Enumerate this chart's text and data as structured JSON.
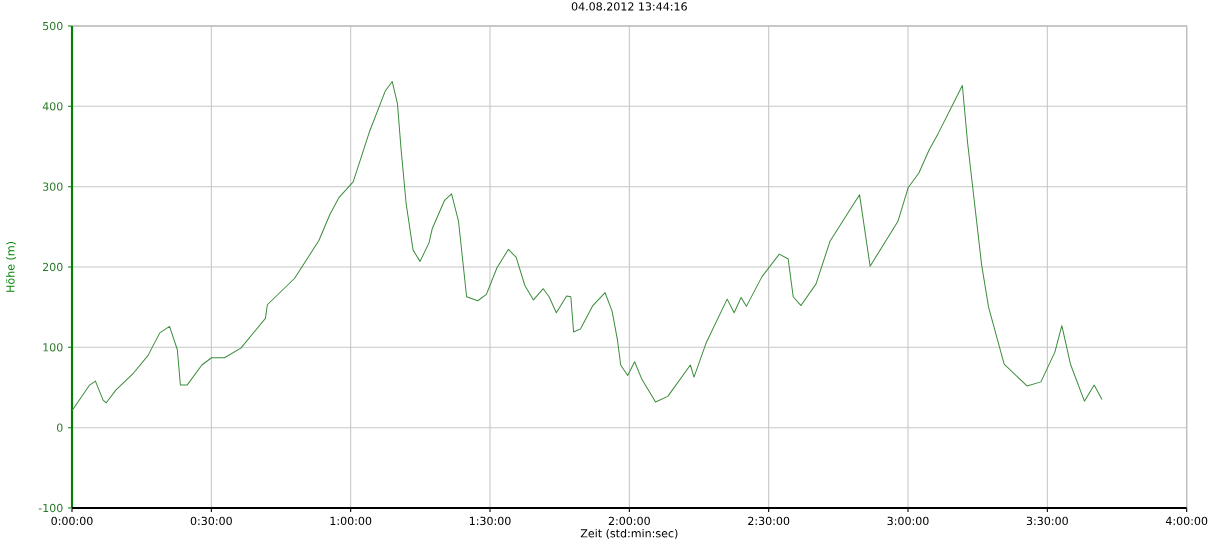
{
  "chart_data": {
    "type": "line",
    "title": "04.08.2012 13:44:16",
    "xlabel": "Zeit (std:min:sec)",
    "ylabel": "Höhe (m)",
    "xlim": [
      0,
      4
    ],
    "ylim": [
      -100,
      500
    ],
    "xticks": [
      {
        "value": 0,
        "label": "0:00:00"
      },
      {
        "value": 0.5,
        "label": "0:30:00"
      },
      {
        "value": 1,
        "label": "1:00:00"
      },
      {
        "value": 1.5,
        "label": "1:30:00"
      },
      {
        "value": 2,
        "label": "2:00:00"
      },
      {
        "value": 2.5,
        "label": "2:30:00"
      },
      {
        "value": 3,
        "label": "3:00:00"
      },
      {
        "value": 3.5,
        "label": "3:30:00"
      },
      {
        "value": 4,
        "label": "4:00:00"
      }
    ],
    "yticks": [
      -100,
      0,
      100,
      200,
      300,
      400,
      500
    ],
    "grid": true,
    "marker": "none",
    "line_style": "solid",
    "series": [
      {
        "color": "#3c8c3c",
        "x": [
          0,
          0.063,
          0.084,
          0.112,
          0.123,
          0.158,
          0.221,
          0.273,
          0.315,
          0.35,
          0.378,
          0.389,
          0.413,
          0.466,
          0.501,
          0.547,
          0.606,
          0.694,
          0.701,
          0.799,
          0.886,
          0.925,
          0.957,
          1.009,
          1.067,
          1.124,
          1.149,
          1.168,
          1.18,
          1.199,
          1.224,
          1.249,
          1.281,
          1.293,
          1.337,
          1.362,
          1.387,
          1.416,
          1.456,
          1.487,
          1.525,
          1.566,
          1.594,
          1.625,
          1.656,
          1.691,
          1.712,
          1.738,
          1.775,
          1.79,
          1.8,
          1.825,
          1.869,
          1.913,
          1.938,
          1.957,
          1.969,
          1.994,
          2.019,
          2.044,
          2.094,
          2.138,
          2.219,
          2.232,
          2.275,
          2.351,
          2.376,
          2.401,
          2.42,
          2.476,
          2.538,
          2.57,
          2.588,
          2.616,
          2.67,
          2.72,
          2.826,
          2.864,
          2.964,
          3.001,
          3.039,
          3.076,
          3.108,
          3.195,
          3.214,
          3.264,
          3.289,
          3.345,
          3.427,
          3.477,
          3.527,
          3.552,
          3.583,
          3.633,
          3.668,
          3.696
        ],
        "values": [
          21,
          53,
          58,
          34,
          31,
          47,
          68,
          90,
          118,
          126,
          97,
          53,
          53,
          78,
          87,
          87,
          99,
          136,
          153,
          186,
          233,
          265,
          286,
          306,
          368,
          419,
          431,
          403,
          350,
          279,
          221,
          207,
          230,
          248,
          283,
          291,
          257,
          163,
          158,
          166,
          199,
          222,
          212,
          177,
          159,
          173,
          163,
          143,
          164,
          163,
          119,
          123,
          152,
          168,
          145,
          110,
          78,
          65,
          82,
          61,
          32,
          39,
          78,
          63,
          105,
          160,
          143,
          162,
          151,
          188,
          216,
          210,
          163,
          152,
          179,
          232,
          290,
          201,
          257,
          299,
          317,
          346,
          366,
          426,
          354,
          203,
          150,
          79,
          52,
          57,
          94,
          127,
          79,
          33,
          53,
          35
        ]
      }
    ]
  }
}
